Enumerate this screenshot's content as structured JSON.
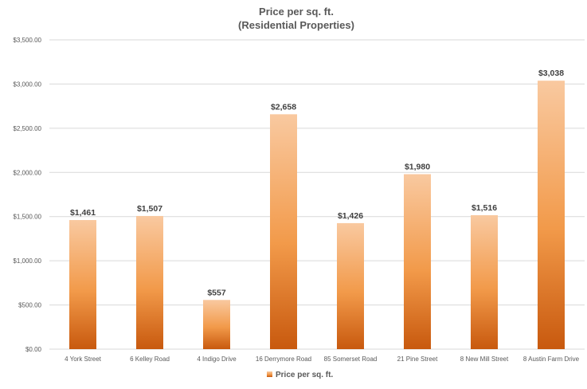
{
  "chart_data": {
    "type": "bar",
    "title": "Price per sq. ft.",
    "subtitle": "(Residential Properties)",
    "categories": [
      "4  York Street",
      "6 Kelley Road",
      "4 Indigo Drive",
      "16 Derrymore Road",
      "85 Somerset Road",
      "21 Pine Street",
      "8 New Mill Street",
      "8 Austin Farm Drive"
    ],
    "series": [
      {
        "name": "Price per sq. ft.",
        "values": [
          1461,
          1507,
          557,
          2658,
          1426,
          1980,
          1516,
          3038
        ],
        "labels": [
          "$1,461",
          "$1,507",
          "$557",
          "$2,658",
          "$1,426",
          "$1,980",
          "$1,516",
          "$3,038"
        ]
      }
    ],
    "ylim": [
      0,
      3500
    ],
    "yticks": [
      0,
      500,
      1000,
      1500,
      2000,
      2500,
      3000,
      3500
    ],
    "ytick_labels": [
      "$0.00",
      "$500.00",
      "$1,000.00",
      "$1,500.00",
      "$2,000.00",
      "$2,500.00",
      "$3,000.00",
      "$3,500.00"
    ],
    "grid": true,
    "legend_position": "bottom",
    "colors": {
      "bar_top": "#F9C9A0",
      "bar_mid": "#F29A4A",
      "bar_bottom": "#C8590E",
      "grid": "#D9D9D9",
      "text": "#595959"
    }
  }
}
